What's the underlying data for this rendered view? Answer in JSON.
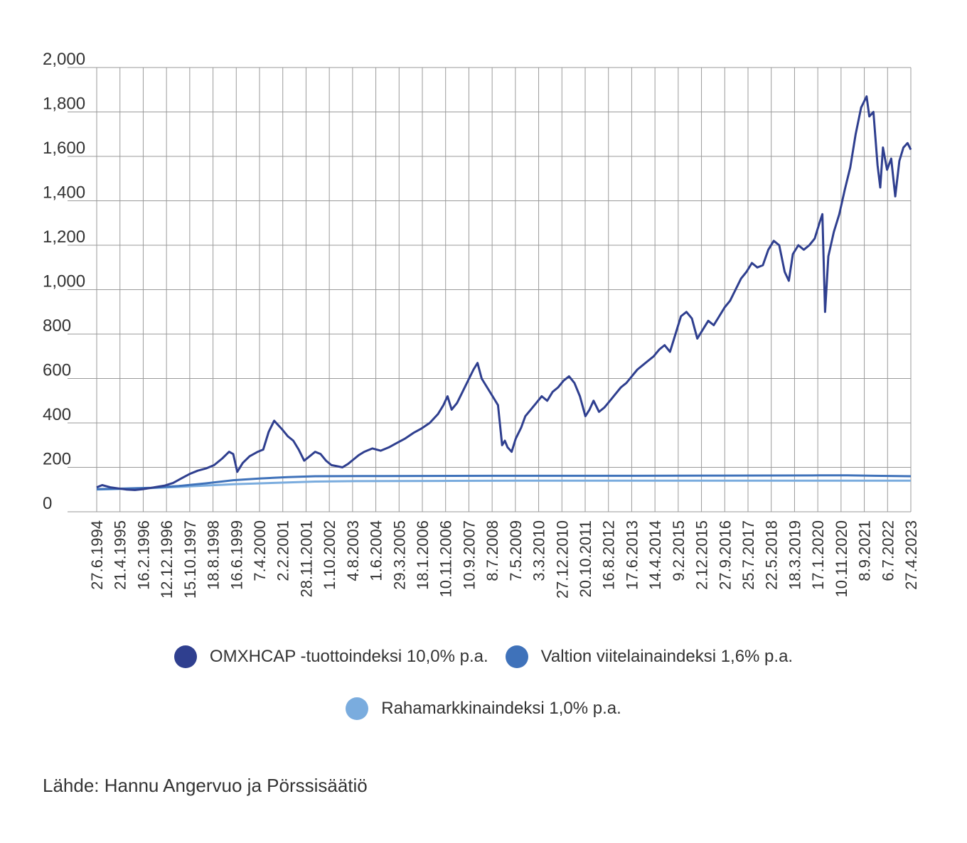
{
  "chart_data": {
    "type": "line",
    "ylim": [
      0,
      2000
    ],
    "y_ticks": [
      "2,000",
      "1,800",
      "1,600",
      "1,400",
      "1,200",
      "1,000",
      "800",
      "600",
      "400",
      "200",
      "0"
    ],
    "x_tick_labels": [
      "27.6.1994",
      "21.4.1995",
      "16.2.1996",
      "12.12.1996",
      "15.10.1997",
      "18.8.1998",
      "16.6.1999",
      "7.4.2000",
      "2.2.2001",
      "28.11.2001",
      "1.10.2002",
      "4.8.2003",
      "1.6.2004",
      "29.3.2005",
      "18.1.2006",
      "10.11.2006",
      "10.9.2007",
      "8.7.2008",
      "7.5.2009",
      "3.3.2010",
      "27.12.2010",
      "20.10.2011",
      "16.8.2012",
      "17.6.2013",
      "14.4.2014",
      "9.2.2015",
      "2.12.2015",
      "27.9.2016",
      "25.7.2017",
      "22.5.2018",
      "18.3.2019",
      "17.1.2020",
      "10.11.2020",
      "8.9.2021",
      "6.7.2022",
      "27.4.2023"
    ],
    "x_range": [
      1993.5,
      2023.32
    ],
    "grid": true,
    "legend_position": "bottom",
    "series": [
      {
        "name": "OMXHCAP -tuottoindeksi 10,0% p.a.",
        "color": "#2f3f8f",
        "x": [
          1993.5,
          1993.7,
          1994.0,
          1994.3,
          1994.6,
          1994.9,
          1995.2,
          1995.5,
          1995.7,
          1996.0,
          1996.3,
          1996.6,
          1996.9,
          1997.2,
          1997.5,
          1997.8,
          1998.1,
          1998.35,
          1998.5,
          1998.65,
          1998.85,
          1999.1,
          1999.4,
          1999.6,
          1999.8,
          2000.0,
          2000.15,
          2000.3,
          2000.5,
          2000.7,
          2000.9,
          2001.1,
          2001.3,
          2001.5,
          2001.7,
          2001.9,
          2002.1,
          2002.3,
          2002.5,
          2002.7,
          2002.9,
          2003.1,
          2003.3,
          2003.6,
          2003.9,
          2004.2,
          2004.5,
          2004.8,
          2005.1,
          2005.4,
          2005.7,
          2006.0,
          2006.2,
          2006.35,
          2006.5,
          2006.7,
          2006.9,
          2007.1,
          2007.3,
          2007.45,
          2007.6,
          2007.8,
          2008.0,
          2008.2,
          2008.35,
          2008.45,
          2008.55,
          2008.7,
          2008.85,
          2009.05,
          2009.2,
          2009.4,
          2009.6,
          2009.8,
          2010.0,
          2010.2,
          2010.4,
          2010.6,
          2010.8,
          2011.0,
          2011.2,
          2011.4,
          2011.55,
          2011.7,
          2011.9,
          2012.1,
          2012.3,
          2012.5,
          2012.7,
          2012.9,
          2013.1,
          2013.3,
          2013.5,
          2013.7,
          2013.9,
          2014.1,
          2014.3,
          2014.5,
          2014.7,
          2014.9,
          2015.1,
          2015.3,
          2015.5,
          2015.7,
          2015.9,
          2016.1,
          2016.3,
          2016.5,
          2016.7,
          2016.9,
          2017.1,
          2017.3,
          2017.5,
          2017.7,
          2017.9,
          2018.1,
          2018.3,
          2018.5,
          2018.7,
          2018.85,
          2019.0,
          2019.2,
          2019.4,
          2019.6,
          2019.8,
          2020.0,
          2020.08,
          2020.18,
          2020.3,
          2020.5,
          2020.7,
          2020.9,
          2021.1,
          2021.3,
          2021.5,
          2021.7,
          2021.8,
          2021.95,
          2022.1,
          2022.2,
          2022.3,
          2022.45,
          2022.6,
          2022.75,
          2022.9,
          2023.05,
          2023.2,
          2023.32
        ],
        "values": [
          110,
          120,
          110,
          105,
          100,
          98,
          102,
          108,
          112,
          118,
          130,
          150,
          170,
          185,
          195,
          210,
          240,
          270,
          260,
          180,
          220,
          250,
          270,
          280,
          360,
          410,
          390,
          370,
          340,
          320,
          280,
          230,
          250,
          270,
          260,
          230,
          210,
          205,
          200,
          215,
          235,
          255,
          270,
          285,
          275,
          290,
          310,
          330,
          355,
          375,
          400,
          440,
          480,
          520,
          460,
          490,
          540,
          590,
          640,
          670,
          600,
          560,
          520,
          480,
          300,
          320,
          290,
          270,
          330,
          380,
          430,
          460,
          490,
          520,
          500,
          540,
          560,
          590,
          610,
          580,
          520,
          430,
          460,
          500,
          450,
          470,
          500,
          530,
          560,
          580,
          610,
          640,
          660,
          680,
          700,
          730,
          750,
          720,
          800,
          880,
          900,
          870,
          780,
          820,
          860,
          840,
          880,
          920,
          950,
          1000,
          1050,
          1080,
          1120,
          1100,
          1110,
          1180,
          1220,
          1200,
          1080,
          1040,
          1160,
          1200,
          1180,
          1200,
          1230,
          1310,
          1340,
          900,
          1150,
          1260,
          1340,
          1450,
          1550,
          1700,
          1820,
          1870,
          1780,
          1800,
          1560,
          1460,
          1640,
          1540,
          1590,
          1420,
          1580,
          1640,
          1660,
          1630
        ]
      },
      {
        "name": "Valtion viitelainaindeksi 1,6% p.a.",
        "color": "#3f72ba",
        "x": [
          1993.5,
          1994.3,
          1995.5,
          1996.5,
          1997.5,
          1998.5,
          1999.5,
          2000.5,
          2001.5,
          2004.0,
          2008.0,
          2012.0,
          2016.0,
          2020.0,
          2021.0,
          2022.0,
          2023.32
        ],
        "values": [
          102,
          104,
          108,
          116,
          128,
          142,
          150,
          156,
          160,
          161,
          162,
          162,
          163,
          164,
          164,
          162,
          160
        ]
      },
      {
        "name": "Rahamarkkinaindeksi 1,0% p.a.",
        "color": "#7aacde",
        "x": [
          1993.5,
          1994.5,
          1995.5,
          1996.5,
          1997.5,
          1998.5,
          1999.5,
          2000.5,
          2001.5,
          2003.0,
          2006.0,
          2009.0,
          2013.0,
          2018.0,
          2023.32
        ],
        "values": [
          100,
          103,
          107,
          112,
          118,
          124,
          128,
          132,
          136,
          138,
          139,
          140,
          140,
          140,
          140
        ]
      }
    ]
  },
  "source": "Lähde: Hannu Angervuo ja Pörssisäätiö"
}
